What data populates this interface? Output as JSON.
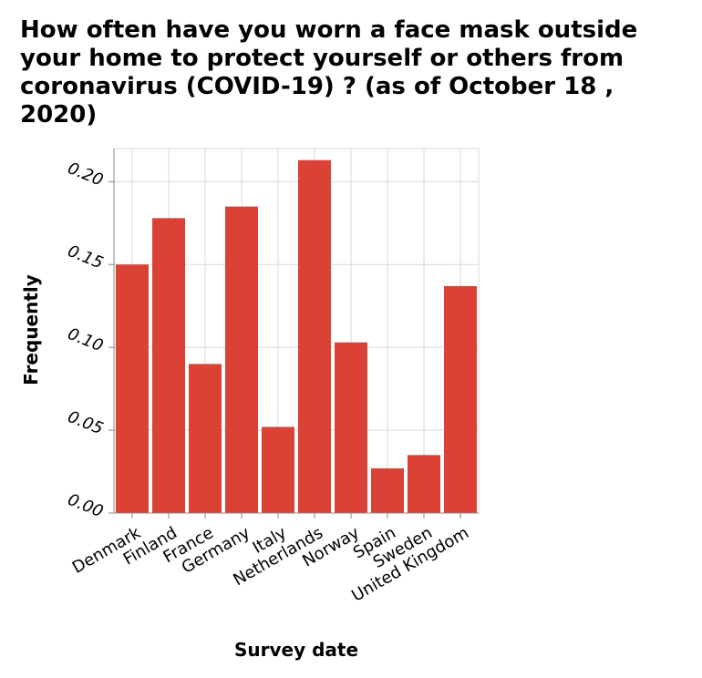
{
  "chart_data": {
    "type": "bar",
    "title": "How often have you worn a face mask outside your home to protect yourself or others from coronavirus (COVID-19) ? (as of October 18 , 2020)",
    "xlabel": "Survey date",
    "ylabel": "Frequently",
    "categories": [
      "Denmark",
      "Finland",
      "France",
      "Germany",
      "Italy",
      "Netherlands",
      "Norway",
      "Spain",
      "Sweden",
      "United Kingdom"
    ],
    "values": [
      0.15,
      0.178,
      0.09,
      0.185,
      0.052,
      0.213,
      0.103,
      0.027,
      0.035,
      0.137
    ],
    "ylim": [
      0,
      0.22
    ],
    "yticks": [
      "0.00",
      "0.05",
      "0.10",
      "0.15",
      "0.20"
    ],
    "grid": true,
    "bar_color": "#dc4136",
    "grid_color": "#d9d9d9"
  }
}
